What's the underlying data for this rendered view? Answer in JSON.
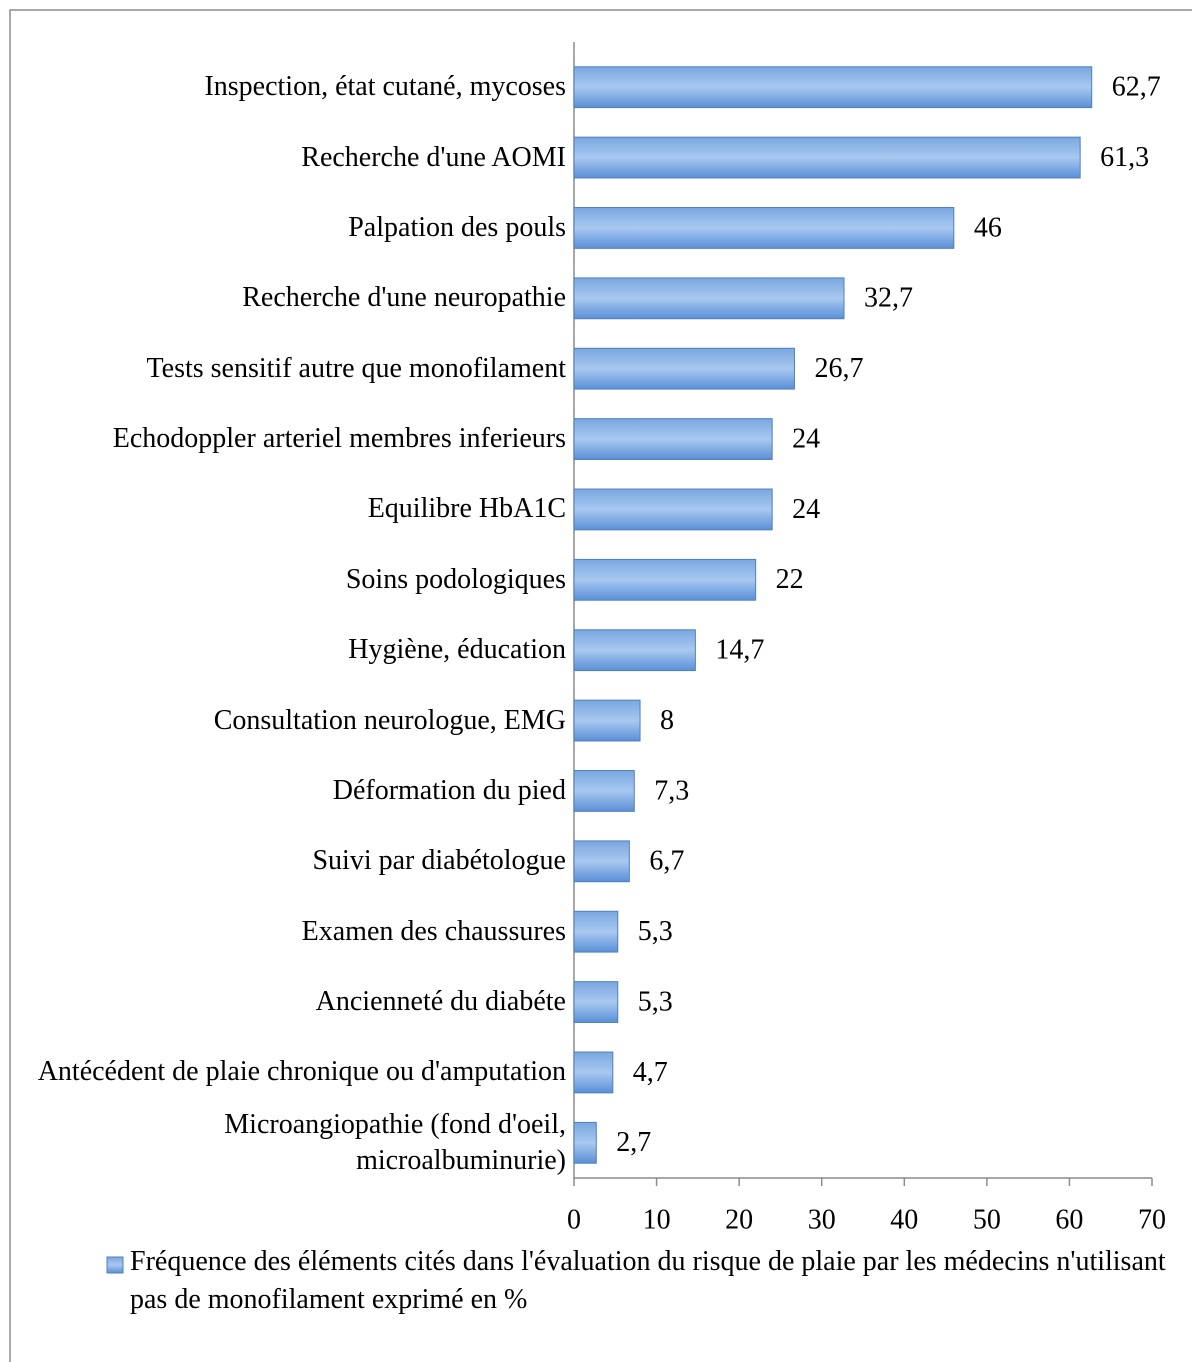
{
  "chart_data": {
    "type": "bar",
    "orientation": "horizontal",
    "categories": [
      "Inspection, état cutané, mycoses",
      "Recherche d'une AOMI",
      "Palpation des pouls",
      "Recherche d'une neuropathie",
      "Tests sensitif autre que monofilament",
      "Echodoppler arteriel membres inferieurs",
      "Equilibre HbA1C",
      "Soins podologiques",
      "Hygiène, éducation",
      "Consultation neurologue, EMG",
      "Déformation du pied",
      "Suivi par diabétologue",
      "Examen des chaussures",
      "Ancienneté du diabéte",
      "Antécédent de plaie chronique ou d'amputation",
      "Microangiopathie (fond d'oeil, microalbuminurie)"
    ],
    "series": [
      {
        "name": "Fréquence des éléments cités dans l'évaluation du risque de plaie par les médecins n'utilisant pas de monofilament  exprimé en %",
        "color": "#4f81bd",
        "values": [
          62.7,
          61.3,
          46,
          32.7,
          26.7,
          24,
          24,
          22,
          14.7,
          8,
          7.3,
          6.7,
          5.3,
          5.3,
          4.7,
          2.7
        ],
        "value_labels": [
          "62,7",
          "61,3",
          "46",
          "32,7",
          "26,7",
          "24",
          "24",
          "22",
          "14,7",
          "8",
          "7,3",
          "6,7",
          "5,3",
          "5,3",
          "4,7",
          "2,7"
        ]
      }
    ],
    "xlim": [
      0,
      70
    ],
    "xticks": [
      0,
      10,
      20,
      30,
      40,
      50,
      60,
      70
    ],
    "grid": false,
    "legend": "bottom"
  }
}
